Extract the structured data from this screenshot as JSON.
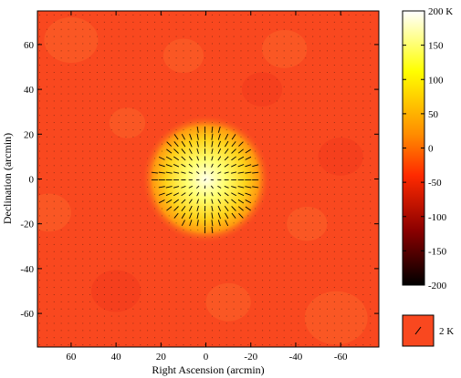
{
  "chart_data": {
    "type": "heatmap",
    "title": "",
    "xlabel": "Right Ascension (arcmin)",
    "ylabel": "Declination (arcmin)",
    "xlim": [
      75,
      -77
    ],
    "ylim": [
      -75,
      75
    ],
    "x_ticks": [
      60,
      40,
      20,
      0,
      -20,
      -40,
      -60
    ],
    "y_ticks": [
      60,
      40,
      20,
      0,
      -20,
      -40,
      -60
    ],
    "colorbar": {
      "range": [
        -200,
        200
      ],
      "ticks": [
        {
          "value": 200,
          "label": "200 K"
        },
        {
          "value": 150,
          "label": "150"
        },
        {
          "value": 100,
          "label": "100"
        },
        {
          "value": 50,
          "label": "50"
        },
        {
          "value": 0,
          "label": "0"
        },
        {
          "value": -50,
          "label": "-50"
        },
        {
          "value": -100,
          "label": "-100"
        },
        {
          "value": -150,
          "label": "-150"
        },
        {
          "value": -200,
          "label": "-200"
        }
      ],
      "colors": [
        "#000000",
        "#8b0000",
        "#ff2a00",
        "#ff8c00",
        "#ffff00",
        "#ffffff"
      ]
    },
    "background_temperature_K": 0,
    "source": {
      "ra": 0,
      "dec": 0,
      "peak_K": 150,
      "radius_arcmin": 23
    },
    "polarization_scale": {
      "label": "2 K"
    },
    "colors": {
      "background": "#f9481f",
      "mottle_dark": "#f0361a",
      "mottle_light": "#fb6a2a",
      "vector": "#000000"
    }
  }
}
